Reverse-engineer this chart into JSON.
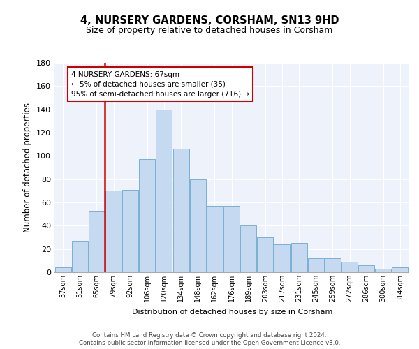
{
  "title": "4, NURSERY GARDENS, CORSHAM, SN13 9HD",
  "subtitle": "Size of property relative to detached houses in Corsham",
  "xlabel": "Distribution of detached houses by size in Corsham",
  "ylabel": "Number of detached properties",
  "categories": [
    "37sqm",
    "51sqm",
    "65sqm",
    "79sqm",
    "92sqm",
    "106sqm",
    "120sqm",
    "134sqm",
    "148sqm",
    "162sqm",
    "176sqm",
    "189sqm",
    "203sqm",
    "217sqm",
    "231sqm",
    "245sqm",
    "259sqm",
    "272sqm",
    "286sqm",
    "300sqm",
    "314sqm"
  ],
  "bar_heights": [
    4,
    27,
    52,
    70,
    71,
    97,
    140,
    106,
    80,
    57,
    57,
    40,
    30,
    24,
    25,
    12,
    12,
    9,
    6,
    3,
    4
  ],
  "highlight_color": "#cc0000",
  "bar_color": "#c5d9f0",
  "bar_edge_color": "#7bafd4",
  "background_color": "#eef2fb",
  "grid_color": "#ffffff",
  "annotation_text": "4 NURSERY GARDENS: 67sqm\n← 5% of detached houses are smaller (35)\n95% of semi-detached houses are larger (716) →",
  "footer_line1": "Contains HM Land Registry data © Crown copyright and database right 2024.",
  "footer_line2": "Contains public sector information licensed under the Open Government Licence v3.0.",
  "ylim": [
    0,
    180
  ],
  "yticks": [
    0,
    20,
    40,
    60,
    80,
    100,
    120,
    140,
    160,
    180
  ],
  "red_line_x": 2.5
}
